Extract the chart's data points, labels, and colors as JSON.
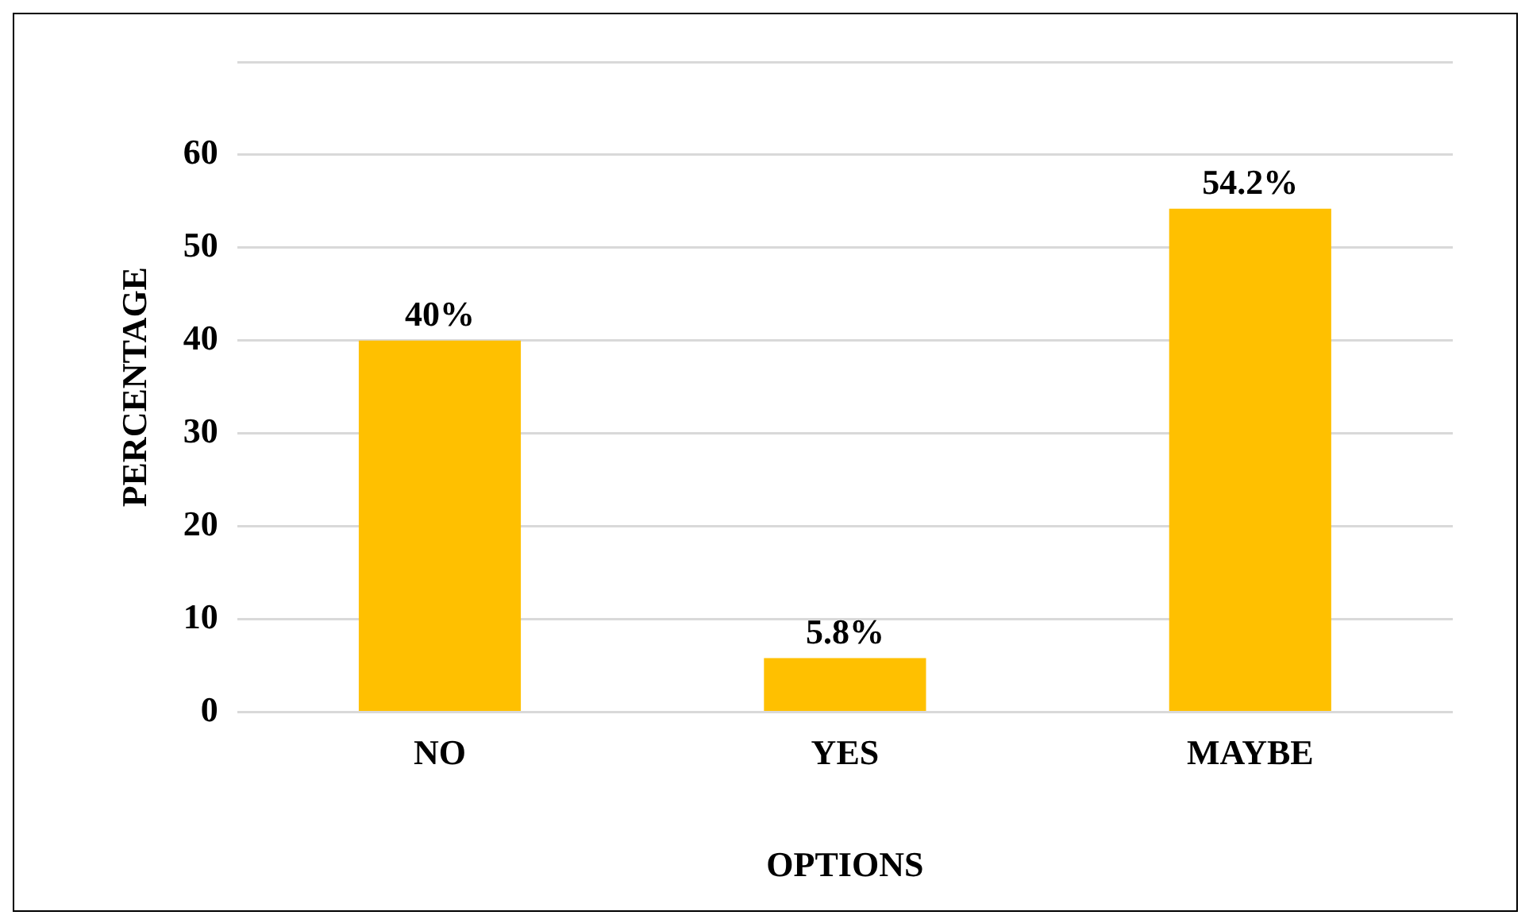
{
  "chart_data": {
    "type": "bar",
    "xlabel": "OPTIONS",
    "ylabel": "PERCENTAGE",
    "categories": [
      "NO",
      "YES",
      "MAYBE"
    ],
    "values": [
      40,
      5.8,
      54.2
    ],
    "value_labels": [
      "40%",
      "5.8%",
      "54.2%"
    ],
    "color": "#ffc000",
    "ylim": [
      0,
      70
    ],
    "yticks": [
      0,
      10,
      20,
      30,
      40,
      50,
      60,
      {
        "value": 70,
        "label": null
      }
    ],
    "grid": "y"
  }
}
